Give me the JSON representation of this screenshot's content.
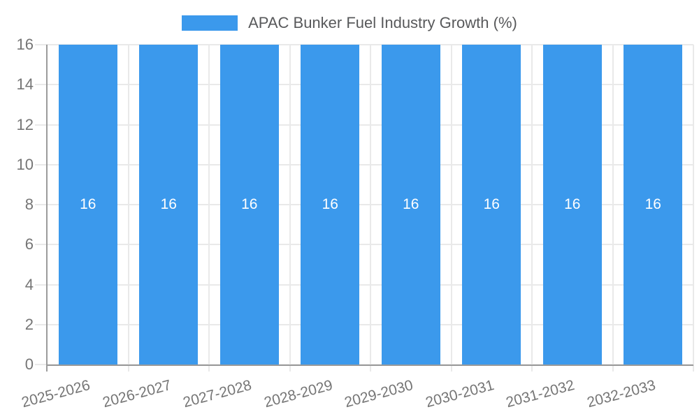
{
  "chart_data": {
    "type": "bar",
    "title": "",
    "legend_label": "APAC Bunker Fuel Industry Growth (%)",
    "legend_position": "top-center",
    "categories": [
      "2025-2026",
      "2026-2027",
      "2027-2028",
      "2028-2029",
      "2029-2030",
      "2030-2031",
      "2031-2032",
      "2032-2033"
    ],
    "series": [
      {
        "name": "APAC Bunker Fuel Industry Growth (%)",
        "color": "#3b99ec",
        "values": [
          16,
          16,
          16,
          16,
          16,
          16,
          16,
          16
        ]
      }
    ],
    "bar_labels_shown": true,
    "bar_label_values": [
      "16",
      "16",
      "16",
      "16",
      "16",
      "16",
      "16",
      "16"
    ],
    "xlabel": "",
    "ylabel": "",
    "ylim": [
      0,
      16
    ],
    "yticks": [
      0,
      2,
      4,
      6,
      8,
      10,
      12,
      14,
      16
    ],
    "grid": true,
    "x_tick_rotation_deg": -15
  },
  "colors": {
    "bar": "#3b99ec",
    "grid": "#e9e9e9",
    "axis": "#9b9b9b",
    "tick_label": "#757575",
    "legend_label": "#58595b",
    "bar_value_label": "#ffffff",
    "background": "#ffffff"
  }
}
